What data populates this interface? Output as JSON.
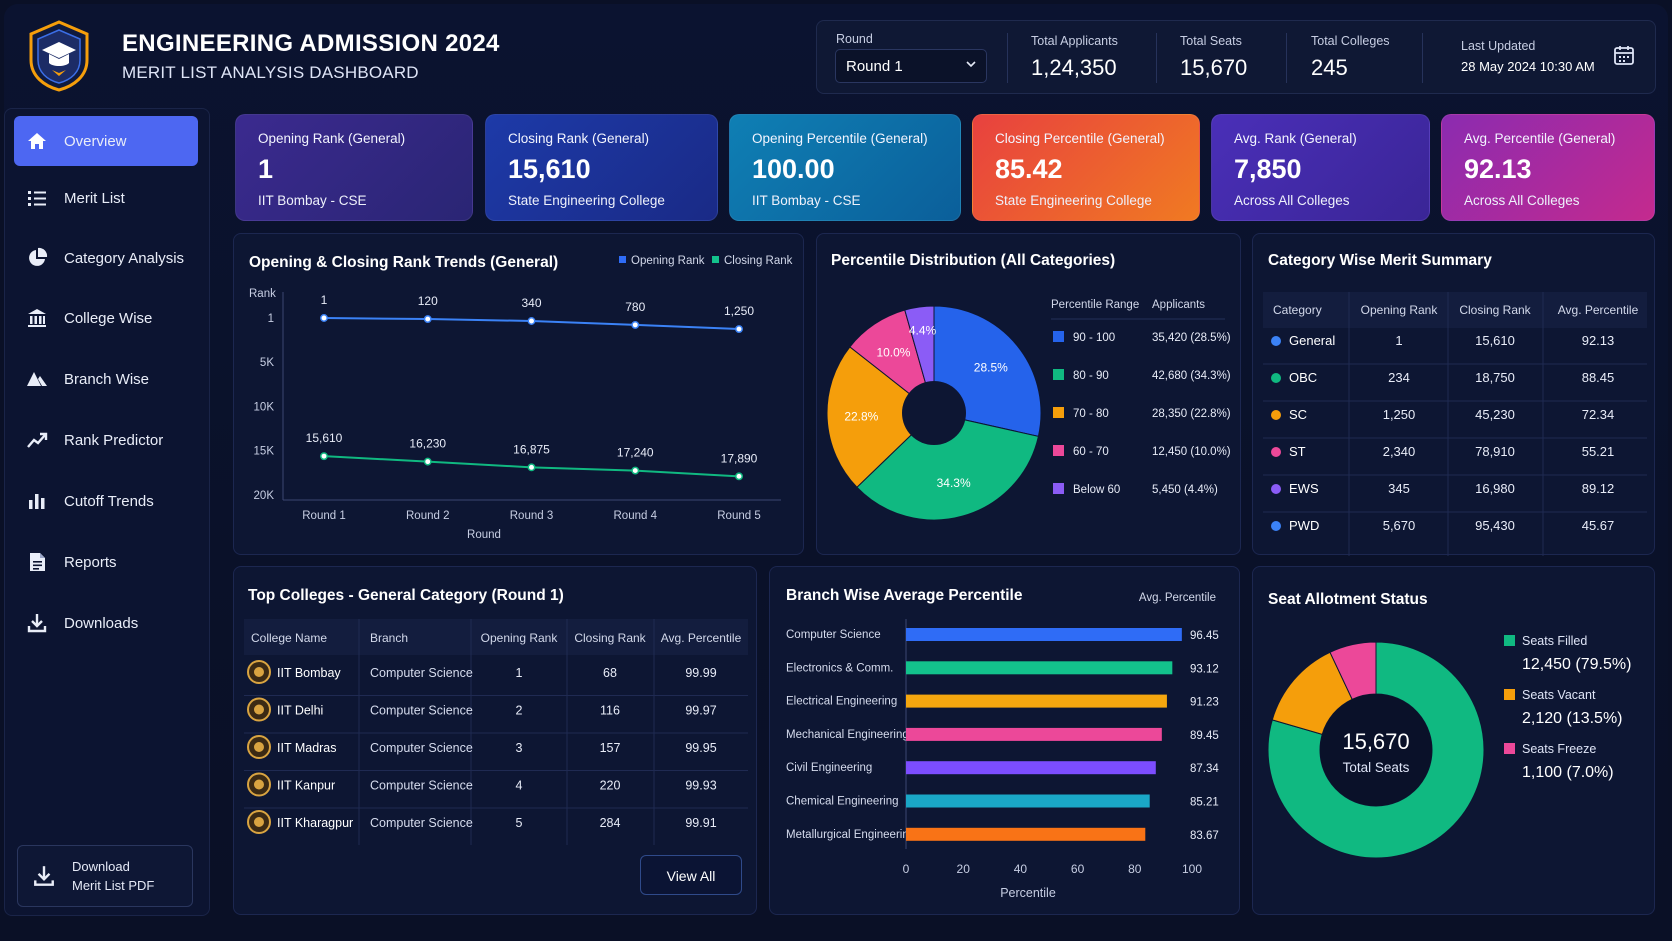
{
  "header": {
    "title": "ENGINEERING ADMISSION 2024",
    "subtitle": "MERIT LIST ANALYSIS DASHBOARD",
    "round_label": "Round",
    "round_value": "Round 1",
    "stats": [
      {
        "label": "Total Applicants",
        "value": "1,24,350"
      },
      {
        "label": "Total Seats",
        "value": "15,670"
      },
      {
        "label": "Total Colleges",
        "value": "245"
      }
    ],
    "last_updated_label": "Last Updated",
    "last_updated_value": "28 May 2024 10:30 AM"
  },
  "sidebar": {
    "items": [
      {
        "label": "Overview",
        "icon": "home-icon"
      },
      {
        "label": "Merit List",
        "icon": "list-icon"
      },
      {
        "label": "Category Analysis",
        "icon": "pie-icon"
      },
      {
        "label": "College Wise",
        "icon": "building-icon"
      },
      {
        "label": "Branch Wise",
        "icon": "branch-icon"
      },
      {
        "label": "Rank Predictor",
        "icon": "trend-icon"
      },
      {
        "label": "Cutoff Trends",
        "icon": "bar-icon"
      },
      {
        "label": "Reports",
        "icon": "document-icon"
      },
      {
        "label": "Downloads",
        "icon": "download-icon"
      }
    ],
    "download_line1": "Download",
    "download_line2": "Merit List PDF"
  },
  "kpis": [
    {
      "label": "Opening Rank (General)",
      "value": "1",
      "sub": "IIT Bombay - CSE"
    },
    {
      "label": "Closing Rank (General)",
      "value": "15,610",
      "sub": "State Engineering College"
    },
    {
      "label": "Opening Percentile (General)",
      "value": "100.00",
      "sub": "IIT Bombay - CSE"
    },
    {
      "label": "Closing Percentile (General)",
      "value": "85.42",
      "sub": "State Engineering College"
    },
    {
      "label": "Avg. Rank (General)",
      "value": "7,850",
      "sub": "Across All Colleges"
    },
    {
      "label": "Avg. Percentile (General)",
      "value": "92.13",
      "sub": "Across All Colleges"
    }
  ],
  "rank_trend": {
    "title": "Opening & Closing Rank Trends (General)",
    "legend_open": "Opening Rank",
    "legend_close": "Closing Rank",
    "y_axis_label": "Rank",
    "x_axis_label": "Round",
    "y_ticks": [
      "1",
      "5K",
      "10K",
      "15K",
      "20K"
    ]
  },
  "percentile_dist": {
    "title": "Percentile Distribution (All Categories)",
    "col_range": "Percentile Range",
    "col_applicants": "Applicants",
    "rows": [
      {
        "range": "90 - 100",
        "applicants": "35,420 (28.5%)",
        "color": "#2563eb"
      },
      {
        "range": "80 - 90",
        "applicants": "42,680 (34.3%)",
        "color": "#10b981"
      },
      {
        "range": "70 - 80",
        "applicants": "28,350 (22.8%)",
        "color": "#f59e0b"
      },
      {
        "range": "60 - 70",
        "applicants": "12,450 (10.0%)",
        "color": "#ec4899"
      },
      {
        "range": "Below 60",
        "applicants": "5,450 (4.4%)",
        "color": "#8b5cf6"
      }
    ]
  },
  "category_summary": {
    "title": "Category Wise Merit Summary",
    "headers": [
      "Category",
      "Opening Rank",
      "Closing Rank",
      "Avg. Percentile"
    ],
    "rows": [
      {
        "category": "General",
        "opening": "1",
        "closing": "15,610",
        "avg": "92.13",
        "color": "#3b82f6"
      },
      {
        "category": "OBC",
        "opening": "234",
        "closing": "18,750",
        "avg": "88.45",
        "color": "#10b981"
      },
      {
        "category": "SC",
        "opening": "1,250",
        "closing": "45,230",
        "avg": "72.34",
        "color": "#f59e0b"
      },
      {
        "category": "ST",
        "opening": "2,340",
        "closing": "78,910",
        "avg": "55.21",
        "color": "#ec4899"
      },
      {
        "category": "EWS",
        "opening": "345",
        "closing": "16,980",
        "avg": "89.12",
        "color": "#8b5cf6"
      },
      {
        "category": "PWD",
        "opening": "5,670",
        "closing": "95,430",
        "avg": "45.67",
        "color": "#3b82f6"
      }
    ]
  },
  "top_colleges": {
    "title": "Top Colleges - General Category (Round 1)",
    "headers": [
      "College Name",
      "Branch",
      "Opening Rank",
      "Closing Rank",
      "Avg. Percentile"
    ],
    "rows": [
      {
        "college": "IIT Bombay",
        "branch": "Computer Science",
        "opening": "1",
        "closing": "68",
        "avg": "99.99"
      },
      {
        "college": "IIT Delhi",
        "branch": "Computer Science",
        "opening": "2",
        "closing": "116",
        "avg": "99.97"
      },
      {
        "college": "IIT Madras",
        "branch": "Computer Science",
        "opening": "3",
        "closing": "157",
        "avg": "99.95"
      },
      {
        "college": "IIT Kanpur",
        "branch": "Computer Science",
        "opening": "4",
        "closing": "220",
        "avg": "99.93"
      },
      {
        "college": "IIT Kharagpur",
        "branch": "Computer Science",
        "opening": "5",
        "closing": "284",
        "avg": "99.91"
      }
    ],
    "view_all": "View All"
  },
  "branch_chart": {
    "title": "Branch Wise Average Percentile",
    "legend": "Avg. Percentile",
    "x_axis_label": "Percentile"
  },
  "seat_status": {
    "title": "Seat Allotment Status",
    "center_value": "15,670",
    "center_label": "Total Seats",
    "items": [
      {
        "label": "Seats Filled",
        "value": "12,450 (79.5%)",
        "color": "#10b981"
      },
      {
        "label": "Seats Vacant",
        "value": "2,120 (13.5%)",
        "color": "#f59e0b"
      },
      {
        "label": "Seats Freeze",
        "value": "1,100 (7.0%)",
        "color": "#ec4899"
      }
    ]
  },
  "chart_data": [
    {
      "type": "line",
      "title": "Opening & Closing Rank Trends (General)",
      "xlabel": "Round",
      "ylabel": "Rank",
      "categories": [
        "Round 1",
        "Round 2",
        "Round 3",
        "Round 4",
        "Round 5"
      ],
      "ylim": [
        1,
        20000
      ],
      "y_reversed": true,
      "series": [
        {
          "name": "Opening Rank",
          "values": [
            1,
            120,
            340,
            780,
            1250
          ],
          "color": "#3b82f6"
        },
        {
          "name": "Closing Rank",
          "values": [
            15610,
            16230,
            16875,
            17240,
            17890
          ],
          "color": "#10b981"
        }
      ],
      "data_labels": [
        [
          "1",
          "120",
          "340",
          "780",
          "1,250"
        ],
        [
          "15,610",
          "16,230",
          "16,875",
          "17,240",
          "17,890"
        ]
      ],
      "grid": false,
      "legend": "top-right"
    },
    {
      "type": "pie",
      "title": "Percentile Distribution (All Categories)",
      "categories": [
        "90 - 100",
        "80 - 90",
        "70 - 80",
        "60 - 70",
        "Below 60"
      ],
      "values": [
        28.5,
        34.3,
        22.8,
        10.0,
        4.4
      ],
      "labels": [
        "28.5%",
        "34.3%",
        "22.8%",
        "10.0%",
        "4.4%"
      ],
      "colors": [
        "#2563eb",
        "#10b981",
        "#f59e0b",
        "#ec4899",
        "#8b5cf6"
      ]
    },
    {
      "type": "bar",
      "orientation": "horizontal",
      "title": "Branch Wise Average Percentile",
      "xlabel": "Percentile",
      "categories": [
        "Computer Science",
        "Electronics & Comm.",
        "Electrical Engineering",
        "Mechanical Engineering",
        "Civil Engineering",
        "Chemical Engineering",
        "Metallurgical Engineering"
      ],
      "values": [
        96.45,
        93.12,
        91.23,
        89.45,
        87.34,
        85.21,
        83.67
      ],
      "value_labels": [
        "96.45",
        "93.12",
        "91.23",
        "89.45",
        "87.34",
        "85.21",
        "83.67"
      ],
      "colors": [
        "#2f6cf6",
        "#13c28c",
        "#f5a70f",
        "#ec4899",
        "#7c4dff",
        "#1aa7c7",
        "#f97316"
      ],
      "xlim": [
        0,
        100
      ],
      "x_ticks": [
        "0",
        "20",
        "40",
        "60",
        "80",
        "100"
      ],
      "legend": "top-right"
    },
    {
      "type": "pie",
      "title": "Seat Allotment Status",
      "categories": [
        "Seats Filled",
        "Seats Vacant",
        "Seats Freeze"
      ],
      "values": [
        79.5,
        13.5,
        7.0
      ],
      "colors": [
        "#10b981",
        "#f59e0b",
        "#ec4899"
      ]
    }
  ]
}
